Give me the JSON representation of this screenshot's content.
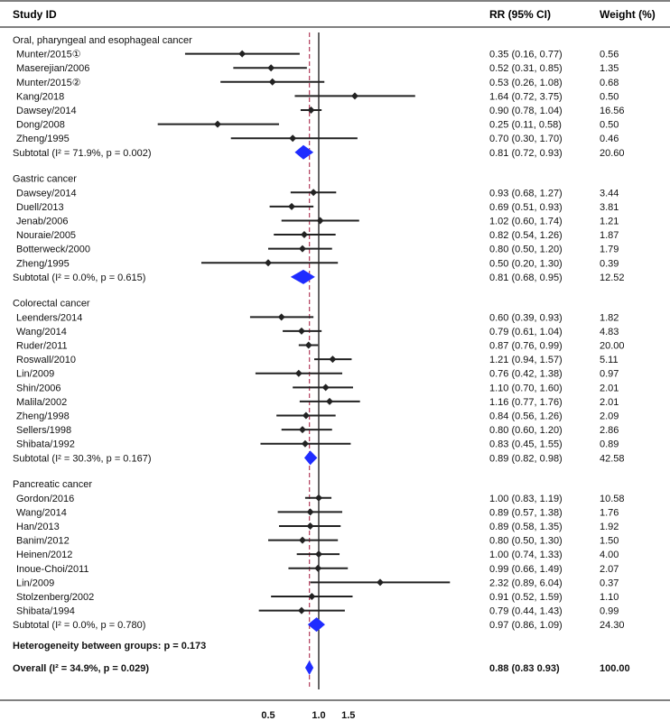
{
  "chart_data": {
    "type": "forest",
    "headers": {
      "study": "Study ID",
      "rr": "RR (95% CI)",
      "weight": "Weight (%)"
    },
    "groups": [
      {
        "name": "Oral, pharyngeal and esophageal cancer",
        "studies": [
          {
            "label": "Munter/2015①",
            "rr": 0.35,
            "lo": 0.16,
            "hi": 0.77,
            "ci_text": "0.35 (0.16, 0.77)",
            "weight": "0.56"
          },
          {
            "label": "Maserejian/2006",
            "rr": 0.52,
            "lo": 0.31,
            "hi": 0.85,
            "ci_text": "0.52 (0.31, 0.85)",
            "weight": "1.35"
          },
          {
            "label": "Munter/2015②",
            "rr": 0.53,
            "lo": 0.26,
            "hi": 1.08,
            "ci_text": "0.53 (0.26, 1.08)",
            "weight": "0.68"
          },
          {
            "label": "Kang/2018",
            "rr": 1.64,
            "lo": 0.72,
            "hi": 3.75,
            "ci_text": "1.64 (0.72, 3.75)",
            "weight": "0.50"
          },
          {
            "label": "Dawsey/2014",
            "rr": 0.9,
            "lo": 0.78,
            "hi": 1.04,
            "ci_text": "0.90 (0.78, 1.04)",
            "weight": "16.56"
          },
          {
            "label": "Dong/2008",
            "rr": 0.25,
            "lo": 0.11,
            "hi": 0.58,
            "ci_text": "0.25 (0.11, 0.58)",
            "weight": "0.50"
          },
          {
            "label": "Zheng/1995",
            "rr": 0.7,
            "lo": 0.3,
            "hi": 1.7,
            "ci_text": "0.70 (0.30, 1.70)",
            "weight": "0.46"
          }
        ],
        "subtotal": {
          "label": "Subtotal (I² = 71.9%, p = 0.002)",
          "rr": 0.81,
          "lo": 0.72,
          "hi": 0.93,
          "ci_text": "0.81 (0.72, 0.93)",
          "weight": "20.60"
        }
      },
      {
        "name": "Gastric cancer",
        "studies": [
          {
            "label": "Dawsey/2014",
            "rr": 0.93,
            "lo": 0.68,
            "hi": 1.27,
            "ci_text": "0.93 (0.68, 1.27)",
            "weight": "3.44"
          },
          {
            "label": "Duell/2013",
            "rr": 0.69,
            "lo": 0.51,
            "hi": 0.93,
            "ci_text": "0.69 (0.51, 0.93)",
            "weight": "3.81"
          },
          {
            "label": "Jenab/2006",
            "rr": 1.02,
            "lo": 0.6,
            "hi": 1.74,
            "ci_text": "1.02 (0.60, 1.74)",
            "weight": "1.21"
          },
          {
            "label": "Nouraie/2005",
            "rr": 0.82,
            "lo": 0.54,
            "hi": 1.26,
            "ci_text": "0.82 (0.54, 1.26)",
            "weight": "1.87"
          },
          {
            "label": "Botterweck/2000",
            "rr": 0.8,
            "lo": 0.5,
            "hi": 1.2,
            "ci_text": "0.80 (0.50, 1.20)",
            "weight": "1.79"
          },
          {
            "label": "Zheng/1995",
            "rr": 0.5,
            "lo": 0.2,
            "hi": 1.3,
            "ci_text": "0.50 (0.20, 1.30)",
            "weight": "0.39"
          }
        ],
        "subtotal": {
          "label": "Subtotal (I² = 0.0%, p = 0.615)",
          "rr": 0.81,
          "lo": 0.68,
          "hi": 0.95,
          "ci_text": "0.81 (0.68, 0.95)",
          "weight": "12.52"
        }
      },
      {
        "name": "Colorectal cancer",
        "studies": [
          {
            "label": "Leenders/2014",
            "rr": 0.6,
            "lo": 0.39,
            "hi": 0.93,
            "ci_text": "0.60 (0.39, 0.93)",
            "weight": "1.82"
          },
          {
            "label": "Wang/2014",
            "rr": 0.79,
            "lo": 0.61,
            "hi": 1.04,
            "ci_text": "0.79 (0.61, 1.04)",
            "weight": "4.83"
          },
          {
            "label": "Ruder/2011",
            "rr": 0.87,
            "lo": 0.76,
            "hi": 0.99,
            "ci_text": "0.87 (0.76, 0.99)",
            "weight": "20.00"
          },
          {
            "label": "Roswall/2010",
            "rr": 1.21,
            "lo": 0.94,
            "hi": 1.57,
            "ci_text": "1.21 (0.94, 1.57)",
            "weight": "5.11"
          },
          {
            "label": "Lin/2009",
            "rr": 0.76,
            "lo": 0.42,
            "hi": 1.38,
            "ci_text": "0.76 (0.42, 1.38)",
            "weight": "0.97"
          },
          {
            "label": "Shin/2006",
            "rr": 1.1,
            "lo": 0.7,
            "hi": 1.6,
            "ci_text": "1.10 (0.70, 1.60)",
            "weight": "2.01"
          },
          {
            "label": "Malila/2002",
            "rr": 1.16,
            "lo": 0.77,
            "hi": 1.76,
            "ci_text": "1.16 (0.77, 1.76)",
            "weight": "2.01"
          },
          {
            "label": "Zheng/1998",
            "rr": 0.84,
            "lo": 0.56,
            "hi": 1.26,
            "ci_text": "0.84 (0.56, 1.26)",
            "weight": "2.09"
          },
          {
            "label": "Sellers/1998",
            "rr": 0.8,
            "lo": 0.6,
            "hi": 1.2,
            "ci_text": "0.80 (0.60, 1.20)",
            "weight": "2.86"
          },
          {
            "label": "Shibata/1992",
            "rr": 0.83,
            "lo": 0.45,
            "hi": 1.55,
            "ci_text": "0.83 (0.45, 1.55)",
            "weight": "0.89"
          }
        ],
        "subtotal": {
          "label": "Subtotal (I² = 30.3%, p = 0.167)",
          "rr": 0.89,
          "lo": 0.82,
          "hi": 0.98,
          "ci_text": "0.89 (0.82, 0.98)",
          "weight": "42.58"
        }
      },
      {
        "name": "Pancreatic cancer",
        "studies": [
          {
            "label": "Gordon/2016",
            "rr": 1.0,
            "lo": 0.83,
            "hi": 1.19,
            "ci_text": "1.00 (0.83, 1.19)",
            "weight": "10.58"
          },
          {
            "label": "Wang/2014",
            "rr": 0.89,
            "lo": 0.57,
            "hi": 1.38,
            "ci_text": "0.89 (0.57, 1.38)",
            "weight": "1.76"
          },
          {
            "label": "Han/2013",
            "rr": 0.89,
            "lo": 0.58,
            "hi": 1.35,
            "ci_text": "0.89 (0.58, 1.35)",
            "weight": "1.92"
          },
          {
            "label": "Banim/2012",
            "rr": 0.8,
            "lo": 0.5,
            "hi": 1.3,
            "ci_text": "0.80 (0.50, 1.30)",
            "weight": "1.50"
          },
          {
            "label": "Heinen/2012",
            "rr": 1.0,
            "lo": 0.74,
            "hi": 1.33,
            "ci_text": "1.00 (0.74, 1.33)",
            "weight": "4.00"
          },
          {
            "label": "Inoue-Choi/2011",
            "rr": 0.99,
            "lo": 0.66,
            "hi": 1.49,
            "ci_text": "0.99 (0.66, 1.49)",
            "weight": "2.07"
          },
          {
            "label": "Lin/2009",
            "rr": 2.32,
            "lo": 0.89,
            "hi": 6.04,
            "ci_text": "2.32 (0.89, 6.04)",
            "weight": "0.37"
          },
          {
            "label": "Stolzenberg/2002",
            "rr": 0.91,
            "lo": 0.52,
            "hi": 1.59,
            "ci_text": "0.91 (0.52, 1.59)",
            "weight": "1.10"
          },
          {
            "label": "Shibata/1994",
            "rr": 0.79,
            "lo": 0.44,
            "hi": 1.43,
            "ci_text": "0.79 (0.44, 1.43)",
            "weight": "0.99"
          }
        ],
        "subtotal": {
          "label": "Subtotal (I² = 0.0%, p = 0.780)",
          "rr": 0.97,
          "lo": 0.86,
          "hi": 1.09,
          "ci_text": "0.97 (0.86, 1.09)",
          "weight": "24.30"
        }
      }
    ],
    "heterogeneity": "Heterogeneity between groups: p = 0.173",
    "overall": {
      "label": "Overall (I² = 34.9%, p = 0.029)",
      "rr": 0.88,
      "lo": 0.83,
      "hi": 0.93,
      "ci_text": "0.88 (0.83 0.93)",
      "weight": "100.00"
    },
    "x_ticks": [
      {
        "value": 0.5,
        "label": "0.5"
      },
      {
        "value": 1.0,
        "label": "1.0"
      },
      {
        "value": 1.5,
        "label": "1.5"
      }
    ],
    "reference_value": 1.0,
    "overall_reference_value": 0.88,
    "colors": {
      "study": "#222222",
      "diamond": "#1f2cff",
      "reference": "#000000",
      "overall_line": "#b23a5a"
    }
  }
}
